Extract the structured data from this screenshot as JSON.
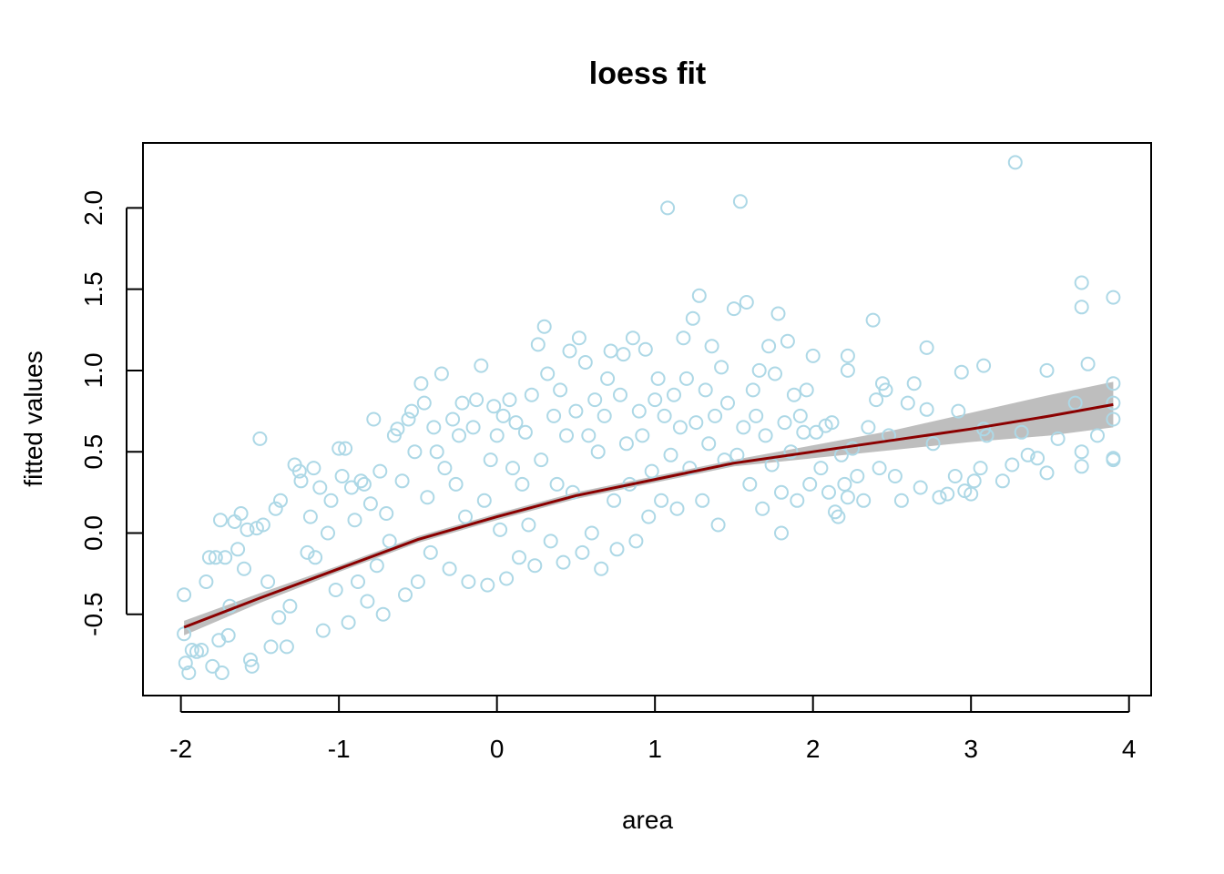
{
  "chart_data": {
    "type": "scatter",
    "title": "loess fit",
    "xlabel": "area",
    "ylabel": "fitted values",
    "xlim": [
      -2.24,
      4.14
    ],
    "ylim": [
      -1.0,
      2.4
    ],
    "x_ticks": [
      -2,
      -1,
      0,
      1,
      2,
      3,
      4
    ],
    "x_tick_labels": [
      "-2",
      "-1",
      "0",
      "1",
      "2",
      "3",
      "4"
    ],
    "y_ticks": [
      -0.5,
      0.0,
      0.5,
      1.0,
      1.5,
      2.0
    ],
    "y_tick_labels": [
      "-0.5",
      "0.0",
      "0.5",
      "1.0",
      "1.5",
      "2.0"
    ],
    "grid": false,
    "legend": "none",
    "colors": {
      "points": "#add8e6",
      "fit_line": "#8b0000",
      "band": "#bebebe"
    },
    "points": [
      [
        -1.98,
        -0.38
      ],
      [
        -1.98,
        -0.62
      ],
      [
        -1.97,
        -0.8
      ],
      [
        -1.95,
        -0.86
      ],
      [
        -1.93,
        -0.72
      ],
      [
        -1.9,
        -0.73
      ],
      [
        -1.87,
        -0.72
      ],
      [
        -1.84,
        -0.3
      ],
      [
        -1.82,
        -0.15
      ],
      [
        -1.8,
        -0.82
      ],
      [
        -1.78,
        -0.15
      ],
      [
        -1.76,
        -0.66
      ],
      [
        -1.75,
        0.08
      ],
      [
        -1.74,
        -0.86
      ],
      [
        -1.72,
        -0.15
      ],
      [
        -1.7,
        -0.63
      ],
      [
        -1.69,
        -0.45
      ],
      [
        -1.66,
        0.07
      ],
      [
        -1.64,
        -0.1
      ],
      [
        -1.62,
        0.12
      ],
      [
        -1.6,
        -0.22
      ],
      [
        -1.58,
        0.02
      ],
      [
        -1.56,
        -0.78
      ],
      [
        -1.55,
        -0.82
      ],
      [
        -1.52,
        0.03
      ],
      [
        -1.5,
        0.58
      ],
      [
        -1.48,
        0.05
      ],
      [
        -1.45,
        -0.3
      ],
      [
        -1.43,
        -0.7
      ],
      [
        -1.4,
        0.15
      ],
      [
        -1.38,
        -0.52
      ],
      [
        -1.37,
        0.2
      ],
      [
        -1.33,
        -0.7
      ],
      [
        -1.31,
        -0.45
      ],
      [
        -1.28,
        0.42
      ],
      [
        -1.25,
        0.38
      ],
      [
        -1.24,
        0.32
      ],
      [
        -1.2,
        -0.12
      ],
      [
        -1.18,
        0.1
      ],
      [
        -1.16,
        0.4
      ],
      [
        -1.15,
        -0.15
      ],
      [
        -1.12,
        0.28
      ],
      [
        -1.1,
        -0.6
      ],
      [
        -1.07,
        0.0
      ],
      [
        -1.05,
        0.2
      ],
      [
        -1.02,
        -0.35
      ],
      [
        -1.0,
        0.52
      ],
      [
        -0.98,
        0.35
      ],
      [
        -0.96,
        0.52
      ],
      [
        -0.94,
        -0.55
      ],
      [
        -0.92,
        0.28
      ],
      [
        -0.9,
        0.08
      ],
      [
        -0.88,
        -0.3
      ],
      [
        -0.86,
        0.32
      ],
      [
        -0.84,
        0.3
      ],
      [
        -0.82,
        -0.42
      ],
      [
        -0.8,
        0.18
      ],
      [
        -0.78,
        0.7
      ],
      [
        -0.76,
        -0.2
      ],
      [
        -0.74,
        0.38
      ],
      [
        -0.72,
        -0.5
      ],
      [
        -0.7,
        0.12
      ],
      [
        -0.68,
        -0.05
      ],
      [
        -0.65,
        0.6
      ],
      [
        -0.63,
        0.64
      ],
      [
        -0.6,
        0.32
      ],
      [
        -0.58,
        -0.38
      ],
      [
        -0.56,
        0.7
      ],
      [
        -0.54,
        0.75
      ],
      [
        -0.52,
        0.5
      ],
      [
        -0.5,
        -0.3
      ],
      [
        -0.48,
        0.92
      ],
      [
        -0.46,
        0.8
      ],
      [
        -0.44,
        0.22
      ],
      [
        -0.42,
        -0.12
      ],
      [
        -0.4,
        0.65
      ],
      [
        -0.38,
        0.5
      ],
      [
        -0.35,
        0.98
      ],
      [
        -0.33,
        0.4
      ],
      [
        -0.3,
        -0.22
      ],
      [
        -0.28,
        0.7
      ],
      [
        -0.26,
        0.3
      ],
      [
        -0.24,
        0.6
      ],
      [
        -0.22,
        0.8
      ],
      [
        -0.2,
        0.1
      ],
      [
        -0.18,
        -0.3
      ],
      [
        -0.15,
        0.65
      ],
      [
        -0.13,
        0.82
      ],
      [
        -0.1,
        1.03
      ],
      [
        -0.08,
        0.2
      ],
      [
        -0.06,
        -0.32
      ],
      [
        -0.04,
        0.45
      ],
      [
        -0.02,
        0.78
      ],
      [
        0.0,
        0.6
      ],
      [
        0.02,
        0.02
      ],
      [
        0.04,
        0.72
      ],
      [
        0.06,
        -0.28
      ],
      [
        0.08,
        0.82
      ],
      [
        0.1,
        0.4
      ],
      [
        0.12,
        0.68
      ],
      [
        0.14,
        -0.15
      ],
      [
        0.16,
        0.3
      ],
      [
        0.18,
        0.62
      ],
      [
        0.2,
        0.05
      ],
      [
        0.22,
        0.85
      ],
      [
        0.24,
        -0.2
      ],
      [
        0.26,
        1.16
      ],
      [
        0.28,
        0.45
      ],
      [
        0.3,
        1.27
      ],
      [
        0.32,
        0.98
      ],
      [
        0.34,
        -0.05
      ],
      [
        0.36,
        0.72
      ],
      [
        0.38,
        0.3
      ],
      [
        0.4,
        0.88
      ],
      [
        0.42,
        -0.18
      ],
      [
        0.44,
        0.6
      ],
      [
        0.46,
        1.12
      ],
      [
        0.48,
        0.25
      ],
      [
        0.5,
        0.75
      ],
      [
        0.52,
        1.2
      ],
      [
        0.54,
        -0.12
      ],
      [
        0.56,
        1.05
      ],
      [
        0.58,
        0.6
      ],
      [
        0.6,
        0.0
      ],
      [
        0.62,
        0.82
      ],
      [
        0.64,
        0.5
      ],
      [
        0.66,
        -0.22
      ],
      [
        0.68,
        0.72
      ],
      [
        0.7,
        0.95
      ],
      [
        0.72,
        1.12
      ],
      [
        0.74,
        0.2
      ],
      [
        0.76,
        -0.1
      ],
      [
        0.78,
        0.85
      ],
      [
        0.8,
        1.1
      ],
      [
        0.82,
        0.55
      ],
      [
        0.84,
        0.3
      ],
      [
        0.86,
        1.2
      ],
      [
        0.88,
        -0.05
      ],
      [
        0.9,
        0.75
      ],
      [
        0.92,
        0.6
      ],
      [
        0.94,
        1.13
      ],
      [
        0.96,
        0.1
      ],
      [
        0.98,
        0.38
      ],
      [
        1.0,
        0.82
      ],
      [
        1.02,
        0.95
      ],
      [
        1.04,
        0.2
      ],
      [
        1.06,
        0.72
      ],
      [
        1.08,
        2.0
      ],
      [
        1.1,
        0.48
      ],
      [
        1.12,
        0.85
      ],
      [
        1.14,
        0.15
      ],
      [
        1.16,
        0.65
      ],
      [
        1.18,
        1.2
      ],
      [
        1.2,
        0.95
      ],
      [
        1.22,
        0.4
      ],
      [
        1.24,
        1.32
      ],
      [
        1.26,
        0.68
      ],
      [
        1.28,
        1.46
      ],
      [
        1.3,
        0.2
      ],
      [
        1.32,
        0.88
      ],
      [
        1.34,
        0.55
      ],
      [
        1.36,
        1.15
      ],
      [
        1.38,
        0.72
      ],
      [
        1.4,
        0.05
      ],
      [
        1.42,
        1.02
      ],
      [
        1.44,
        0.45
      ],
      [
        1.46,
        0.8
      ],
      [
        1.5,
        1.38
      ],
      [
        1.52,
        0.48
      ],
      [
        1.54,
        2.04
      ],
      [
        1.56,
        0.65
      ],
      [
        1.58,
        1.42
      ],
      [
        1.6,
        0.3
      ],
      [
        1.62,
        0.88
      ],
      [
        1.64,
        0.72
      ],
      [
        1.66,
        1.0
      ],
      [
        1.68,
        0.15
      ],
      [
        1.7,
        0.6
      ],
      [
        1.72,
        1.15
      ],
      [
        1.74,
        0.42
      ],
      [
        1.76,
        0.98
      ],
      [
        1.78,
        1.35
      ],
      [
        1.8,
        0.25
      ],
      [
        1.8,
        0.0
      ],
      [
        1.82,
        0.68
      ],
      [
        1.84,
        1.18
      ],
      [
        1.86,
        0.5
      ],
      [
        1.88,
        0.85
      ],
      [
        1.9,
        0.2
      ],
      [
        1.92,
        0.72
      ],
      [
        1.94,
        0.62
      ],
      [
        1.96,
        0.88
      ],
      [
        1.98,
        0.3
      ],
      [
        2.0,
        1.09
      ],
      [
        2.02,
        0.62
      ],
      [
        2.05,
        0.4
      ],
      [
        2.08,
        0.66
      ],
      [
        2.1,
        0.25
      ],
      [
        2.12,
        0.68
      ],
      [
        2.14,
        0.13
      ],
      [
        2.16,
        0.1
      ],
      [
        2.18,
        0.48
      ],
      [
        2.2,
        0.3
      ],
      [
        2.22,
        1.09
      ],
      [
        2.22,
        1.0
      ],
      [
        2.22,
        0.22
      ],
      [
        2.25,
        0.52
      ],
      [
        2.28,
        0.35
      ],
      [
        2.32,
        0.2
      ],
      [
        2.35,
        0.65
      ],
      [
        2.38,
        1.31
      ],
      [
        2.4,
        0.82
      ],
      [
        2.42,
        0.4
      ],
      [
        2.44,
        0.92
      ],
      [
        2.46,
        0.88
      ],
      [
        2.48,
        0.6
      ],
      [
        2.52,
        0.35
      ],
      [
        2.56,
        0.2
      ],
      [
        2.6,
        0.8
      ],
      [
        2.64,
        0.92
      ],
      [
        2.68,
        0.28
      ],
      [
        2.72,
        1.14
      ],
      [
        2.72,
        0.76
      ],
      [
        2.76,
        0.55
      ],
      [
        2.8,
        0.22
      ],
      [
        2.85,
        0.24
      ],
      [
        2.9,
        0.35
      ],
      [
        2.92,
        0.75
      ],
      [
        2.94,
        0.99
      ],
      [
        2.96,
        0.26
      ],
      [
        3.0,
        0.24
      ],
      [
        3.02,
        0.32
      ],
      [
        3.06,
        0.4
      ],
      [
        3.08,
        1.03
      ],
      [
        3.08,
        0.64
      ],
      [
        3.1,
        0.6
      ],
      [
        3.2,
        0.32
      ],
      [
        3.26,
        0.42
      ],
      [
        3.28,
        2.28
      ],
      [
        3.32,
        0.62
      ],
      [
        3.36,
        0.48
      ],
      [
        3.42,
        0.46
      ],
      [
        3.48,
        0.37
      ],
      [
        3.48,
        1.0
      ],
      [
        3.55,
        0.58
      ],
      [
        3.66,
        0.8
      ],
      [
        3.7,
        1.54
      ],
      [
        3.7,
        1.39
      ],
      [
        3.7,
        0.5
      ],
      [
        3.7,
        0.41
      ],
      [
        3.74,
        1.04
      ],
      [
        3.8,
        0.6
      ],
      [
        3.9,
        1.45
      ],
      [
        3.9,
        0.92
      ],
      [
        3.9,
        0.8
      ],
      [
        3.9,
        0.7
      ],
      [
        3.9,
        0.46
      ],
      [
        3.9,
        0.45
      ]
    ],
    "fit_line": {
      "x": [
        -1.98,
        -1.5,
        -1.0,
        -0.5,
        0.0,
        0.5,
        1.0,
        1.5,
        2.0,
        2.5,
        3.0,
        3.5,
        3.9
      ],
      "y": [
        -0.58,
        -0.4,
        -0.22,
        -0.04,
        0.1,
        0.23,
        0.33,
        0.43,
        0.5,
        0.57,
        0.64,
        0.72,
        0.79
      ]
    },
    "band": {
      "x": [
        -1.98,
        -1.5,
        -1.0,
        -0.5,
        0.0,
        0.5,
        1.0,
        1.5,
        2.0,
        2.5,
        3.0,
        3.5,
        3.9
      ],
      "upper": [
        -0.54,
        -0.37,
        -0.2,
        -0.02,
        0.12,
        0.25,
        0.35,
        0.45,
        0.54,
        0.63,
        0.74,
        0.85,
        0.93
      ],
      "lower": [
        -0.63,
        -0.43,
        -0.24,
        -0.06,
        0.08,
        0.21,
        0.31,
        0.41,
        0.46,
        0.51,
        0.56,
        0.6,
        0.65
      ]
    }
  }
}
